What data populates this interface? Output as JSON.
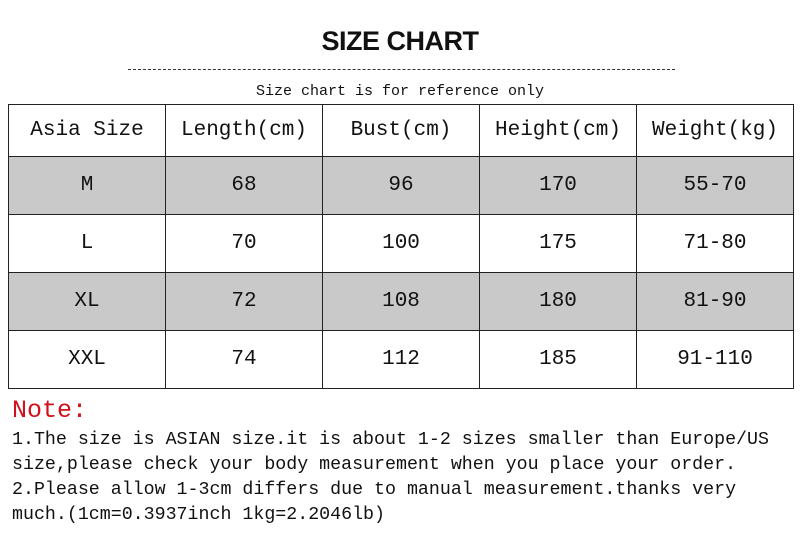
{
  "title": "SIZE CHART",
  "subtitle": "Size chart is for reference only",
  "table": {
    "headers": [
      "Asia Size",
      "Length(cm)",
      "Bust(cm)",
      "Height(cm)",
      "Weight(kg)"
    ],
    "rows": [
      [
        "M",
        "68",
        "96",
        "170",
        "55-70"
      ],
      [
        "L",
        "70",
        "100",
        "175",
        "71-80"
      ],
      [
        "XL",
        "72",
        "108",
        "180",
        "81-90"
      ],
      [
        "XXL",
        "74",
        "112",
        "185",
        "91-110"
      ]
    ],
    "stripe_color": "#c9c9c9"
  },
  "note": {
    "label": "Note:",
    "label_color": "#d0101a",
    "lines": [
      "1.The size is ASIAN size.it is about 1-2 sizes smaller than Europe/US",
      "size,please check your body measurement when you place your order.",
      "2.Please allow 1-3cm differs due to manual measurement.thanks very",
      "much.(1cm=0.3937inch 1kg=2.2046lb)"
    ]
  }
}
